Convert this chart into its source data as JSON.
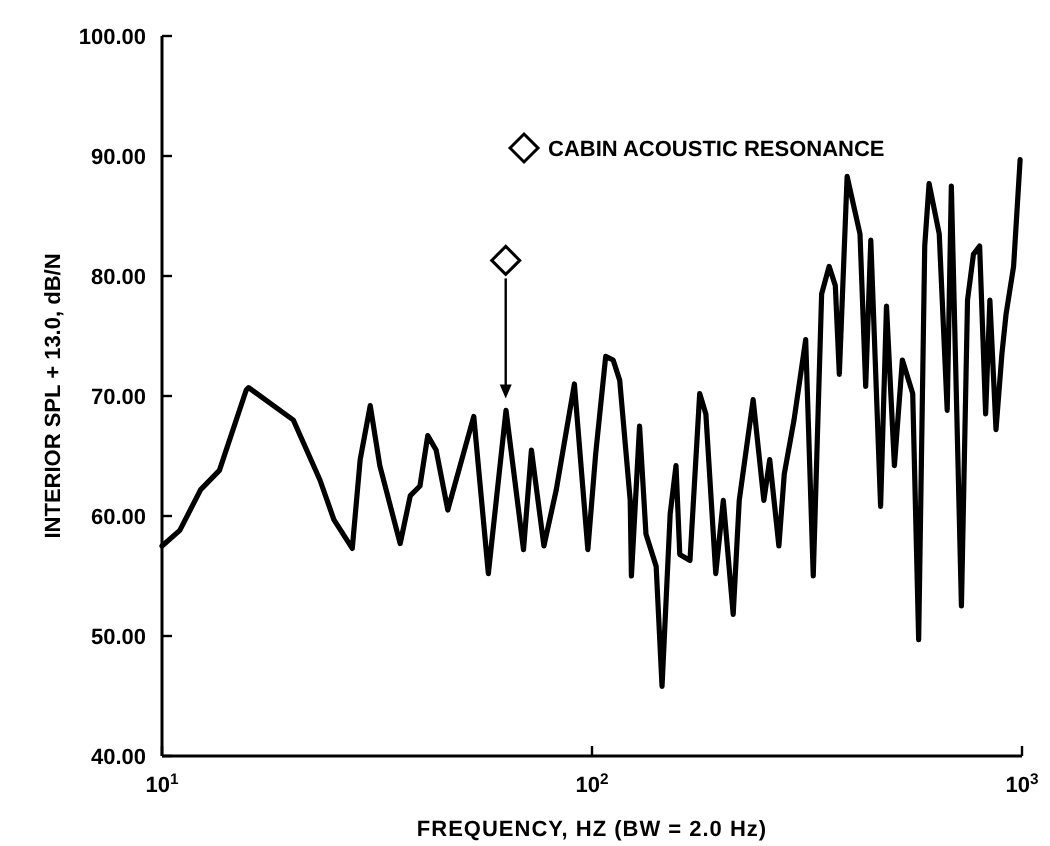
{
  "chart_data": {
    "type": "line",
    "xlabel": "FREQUENCY, HZ (BW = 2.0 Hz)",
    "ylabel": "INTERIOR SPL + 13.0, dB/N",
    "log": "x",
    "xlim": [
      10,
      1000
    ],
    "ylim": [
      40,
      100
    ],
    "xticks": [
      {
        "value": 10,
        "label": "10$^{1}$"
      },
      {
        "value": 100,
        "label": "10$^{2}$"
      },
      {
        "value": 1000,
        "label": "10$^{3}$"
      }
    ],
    "yticks": [
      {
        "value": 40,
        "label": "40.00"
      },
      {
        "value": 50,
        "label": "50.00"
      },
      {
        "value": 60,
        "label": "60.00"
      },
      {
        "value": 70,
        "label": "70.00"
      },
      {
        "value": 80,
        "label": "80.00"
      },
      {
        "value": 90,
        "label": "90.00"
      },
      {
        "value": 100,
        "label": "100.00"
      }
    ],
    "grid": false,
    "legend": "top",
    "marker": "none",
    "line_style": "solid",
    "series": [
      {
        "color": "#000000",
        "x": [
          10,
          11,
          12.3,
          13.6,
          15.7,
          15.9,
          20.2,
          23.3,
          25.1,
          27.7,
          28.9,
          30.5,
          32.1,
          35.8,
          37.8,
          39.8,
          41.5,
          43.4,
          46.2,
          53.1,
          57.4,
          63.1,
          69.3,
          72.3,
          77.3,
          82.6,
          91,
          97.8,
          102,
          107.6,
          112,
          116,
          122.7,
          123.5,
          129,
          133.5,
          141,
          145.5,
          152,
          156.8,
          160,
          169,
          178,
          184,
          194,
          202,
          213,
          220,
          237,
          251,
          259,
          272,
          280,
          295,
          314,
          327,
          342,
          356,
          368,
          376,
          392,
          420,
          433,
          445,
          469,
          484,
          505,
          527,
          557,
          575,
          594,
          608,
          642,
          670,
          685,
          723,
          747,
          771,
          797,
          823,
          842,
          870,
          898,
          918,
          956,
          990
        ],
        "values": [
          57.5,
          58.8,
          62.2,
          63.8,
          70.5,
          70.7,
          68,
          63,
          59.7,
          57.3,
          64.7,
          69.2,
          64.2,
          57.7,
          61.7,
          62.5,
          66.7,
          65.5,
          60.5,
          68.3,
          55.2,
          68.8,
          57.2,
          65.5,
          57.5,
          62.2,
          71,
          57.2,
          65.2,
          73.3,
          73,
          71.3,
          61.3,
          55,
          67.5,
          58.5,
          55.8,
          45.8,
          60.2,
          64.2,
          56.8,
          56.3,
          70.2,
          68.5,
          55.2,
          61.3,
          51.8,
          61.3,
          69.7,
          61.3,
          64.7,
          57.5,
          63.5,
          68,
          74.7,
          55,
          78.5,
          80.8,
          79.2,
          71.8,
          88.3,
          83.5,
          70.8,
          83,
          60.8,
          77.5,
          64.2,
          73,
          70.2,
          49.7,
          82.5,
          87.7,
          83.5,
          68.8,
          87.5,
          52.5,
          78,
          81.8,
          82.5,
          68.5,
          78,
          67.2,
          73.5,
          76.8,
          80.8,
          89.7
        ]
      },
      {
        "type": "scatter",
        "name": "CABIN ACOUSTIC RESONANCE",
        "marker": "diamond",
        "color": "#000000",
        "x": [
          63
        ],
        "values": [
          81.3
        ]
      }
    ]
  }
}
